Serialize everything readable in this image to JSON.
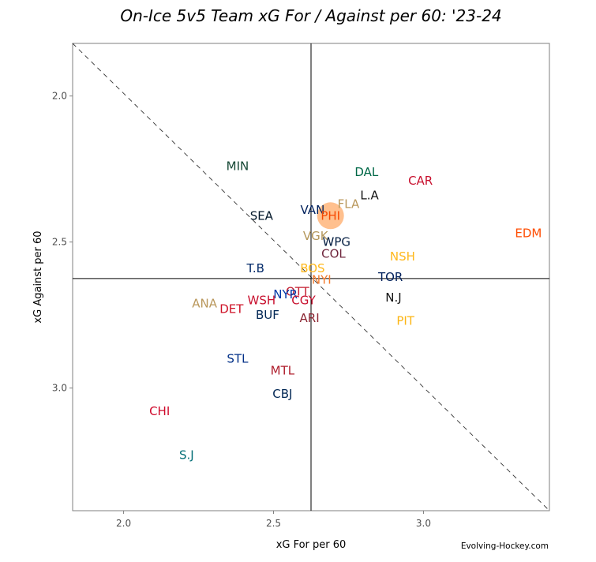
{
  "chart_data": {
    "type": "scatter",
    "title": "On-Ice 5v5 Team xG For / Against per 60: '23-24",
    "xlabel": "xG For per 60",
    "ylabel": "xG Against per 60",
    "xlim": [
      1.83,
      3.42
    ],
    "ylim": [
      1.82,
      3.42
    ],
    "y_reversed": true,
    "x_ticks": [
      2.0,
      2.5,
      3.0
    ],
    "x_tick_labels": [
      "2.0",
      "2.5",
      "3.0"
    ],
    "y_ticks": [
      2.0,
      2.5,
      3.0
    ],
    "y_tick_labels": [
      "2.0",
      "2.5",
      "3.0"
    ],
    "reference_lines": {
      "vline_x": 2.625,
      "hline_y": 2.625,
      "diagonal": "x + y = const (break-even)"
    },
    "grid": false,
    "highlight": {
      "team": "PHI",
      "color": "#FFB57A"
    },
    "points": [
      {
        "team": "MIN",
        "x": 2.38,
        "y": 2.24,
        "color": "#154734"
      },
      {
        "team": "DAL",
        "x": 2.81,
        "y": 2.26,
        "color": "#006847"
      },
      {
        "team": "CAR",
        "x": 2.99,
        "y": 2.29,
        "color": "#C8102E"
      },
      {
        "team": "L.A",
        "x": 2.82,
        "y": 2.34,
        "color": "#111111"
      },
      {
        "team": "FLA",
        "x": 2.75,
        "y": 2.37,
        "color": "#B9975B"
      },
      {
        "team": "VAN",
        "x": 2.63,
        "y": 2.39,
        "color": "#00205B"
      },
      {
        "team": "PHI",
        "x": 2.69,
        "y": 2.41,
        "color": "#F74902"
      },
      {
        "team": "SEA",
        "x": 2.46,
        "y": 2.41,
        "color": "#001628"
      },
      {
        "team": "EDM",
        "x": 3.35,
        "y": 2.47,
        "color": "#FF4C00"
      },
      {
        "team": "VGK",
        "x": 2.64,
        "y": 2.48,
        "color": "#B4975A"
      },
      {
        "team": "WPG",
        "x": 2.71,
        "y": 2.5,
        "color": "#041E42"
      },
      {
        "team": "COL",
        "x": 2.7,
        "y": 2.54,
        "color": "#6F263D"
      },
      {
        "team": "NSH",
        "x": 2.93,
        "y": 2.55,
        "color": "#FFB81C"
      },
      {
        "team": "T.B",
        "x": 2.44,
        "y": 2.59,
        "color": "#002868"
      },
      {
        "team": "BOS",
        "x": 2.63,
        "y": 2.59,
        "color": "#FFB81C"
      },
      {
        "team": "TOR",
        "x": 2.89,
        "y": 2.62,
        "color": "#00205B"
      },
      {
        "team": "NYI",
        "x": 2.66,
        "y": 2.63,
        "color": "#F47D30"
      },
      {
        "team": "OTT",
        "x": 2.58,
        "y": 2.67,
        "color": "#C52032"
      },
      {
        "team": "NYR",
        "x": 2.54,
        "y": 2.68,
        "color": "#0038A8"
      },
      {
        "team": "N.J",
        "x": 2.9,
        "y": 2.69,
        "color": "#111111"
      },
      {
        "team": "WSH",
        "x": 2.46,
        "y": 2.7,
        "color": "#C8102E"
      },
      {
        "team": "CGY",
        "x": 2.6,
        "y": 2.7,
        "color": "#C8102E"
      },
      {
        "team": "ANA",
        "x": 2.27,
        "y": 2.71,
        "color": "#B9975B"
      },
      {
        "team": "DET",
        "x": 2.36,
        "y": 2.73,
        "color": "#CE1126"
      },
      {
        "team": "BUF",
        "x": 2.48,
        "y": 2.75,
        "color": "#002654"
      },
      {
        "team": "ARI",
        "x": 2.62,
        "y": 2.76,
        "color": "#8C2633"
      },
      {
        "team": "PIT",
        "x": 2.94,
        "y": 2.77,
        "color": "#FCB514"
      },
      {
        "team": "STL",
        "x": 2.38,
        "y": 2.9,
        "color": "#002F87"
      },
      {
        "team": "MTL",
        "x": 2.53,
        "y": 2.94,
        "color": "#AF1E2D"
      },
      {
        "team": "CBJ",
        "x": 2.53,
        "y": 3.02,
        "color": "#002654"
      },
      {
        "team": "CHI",
        "x": 2.12,
        "y": 3.08,
        "color": "#CF0A2C"
      },
      {
        "team": "S.J",
        "x": 2.21,
        "y": 3.23,
        "color": "#006D75"
      }
    ]
  },
  "credit": "Evolving-Hockey.com"
}
